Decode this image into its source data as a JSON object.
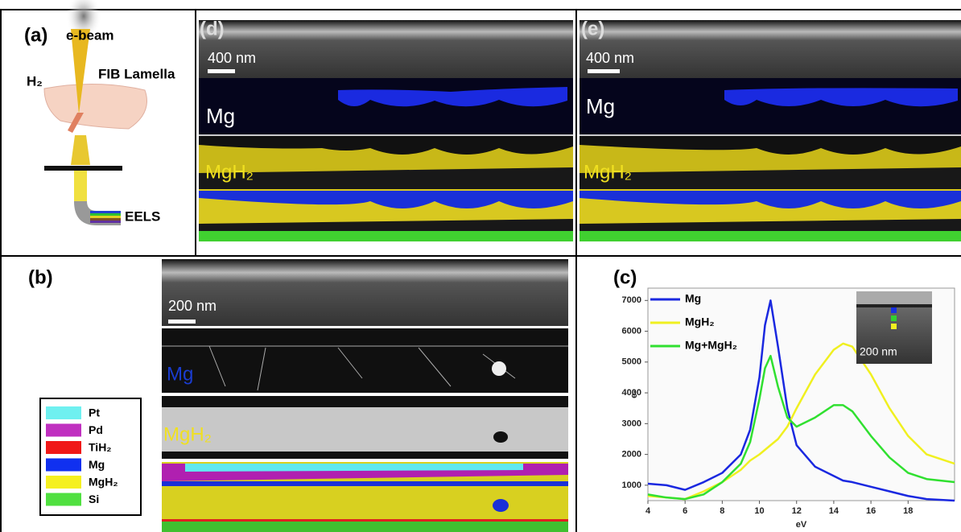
{
  "panels": {
    "a": {
      "label": "(a)",
      "ebeam": "e-beam",
      "gas": "H₂",
      "lamella": "FIB Lamella",
      "detector": "EELS"
    },
    "d": {
      "label": "(d)",
      "scale": "400 nm",
      "map1": "Mg",
      "map2": "MgH₂"
    },
    "e": {
      "label": "(e)",
      "scale": "400 nm",
      "map1": "Mg",
      "map2": "MgH₂"
    },
    "b": {
      "label": "(b)",
      "scale": "200 nm",
      "map1": "Mg",
      "map2": "MgH₂",
      "legend": [
        {
          "name": "Pt",
          "color": "#6ff0f0"
        },
        {
          "name": "Pd",
          "color": "#c030c0"
        },
        {
          "name": "TiH₂",
          "color": "#f01818"
        },
        {
          "name": "Mg",
          "color": "#1030f0"
        },
        {
          "name": "MgH₂",
          "color": "#f5f020"
        },
        {
          "name": "Si",
          "color": "#50e040"
        }
      ]
    },
    "c": {
      "label": "(c)",
      "inset_scale": "200 nm"
    }
  },
  "chart_data": {
    "type": "line",
    "xlabel": "eV",
    "ylabel": "e-",
    "x": [
      4,
      5,
      6,
      7,
      8,
      9,
      9.5,
      10,
      10.3,
      10.6,
      11,
      11.5,
      12,
      13,
      14,
      14.5,
      15,
      16,
      17,
      18,
      19,
      20.5
    ],
    "series": [
      {
        "name": "Mg",
        "color": "#1a28e0",
        "values": [
          1050,
          1000,
          850,
          1100,
          1400,
          2000,
          2800,
          4500,
          6200,
          7000,
          5500,
          3500,
          2300,
          1600,
          1300,
          1150,
          1100,
          950,
          800,
          650,
          550,
          500
        ]
      },
      {
        "name": "MgH₂",
        "color": "#f0f020",
        "values": [
          650,
          600,
          550,
          800,
          1100,
          1500,
          1800,
          2000,
          2150,
          2300,
          2500,
          2900,
          3500,
          4600,
          5400,
          5600,
          5500,
          4600,
          3500,
          2600,
          2000,
          1700
        ]
      },
      {
        "name": "Mg+MgH₂",
        "color": "#30e030",
        "values": [
          700,
          600,
          550,
          700,
          1100,
          1700,
          2400,
          3800,
          4800,
          5200,
          4200,
          3200,
          2900,
          3200,
          3600,
          3600,
          3400,
          2600,
          1900,
          1400,
          1200,
          1100
        ]
      }
    ],
    "xlim": [
      4,
      20.5
    ],
    "ylim": [
      500,
      7400
    ],
    "xticks": [
      4,
      6,
      8,
      10,
      12,
      14,
      16,
      18
    ],
    "yticks": [
      1000,
      2000,
      3000,
      4000,
      5000,
      6000,
      7000
    ]
  }
}
